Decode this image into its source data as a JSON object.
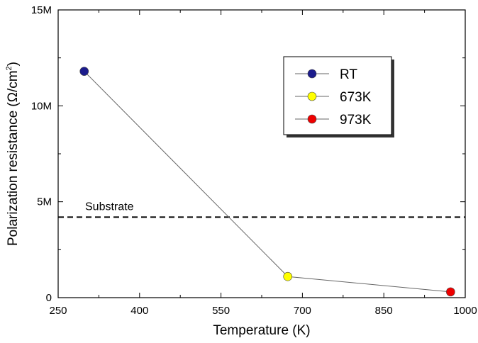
{
  "chart_data": {
    "type": "scatter",
    "xlabel": "Temperature (K)",
    "ylabel_main": "Polarization resistance (Ω/cm",
    "ylabel_sup": "2",
    "ylabel_close": ")",
    "xlim": [
      250,
      1000
    ],
    "ylim": [
      0,
      15000000
    ],
    "x_ticks": [
      {
        "value": 250,
        "label": "250"
      },
      {
        "value": 400,
        "label": "400"
      },
      {
        "value": 550,
        "label": "550"
      },
      {
        "value": 700,
        "label": "700"
      },
      {
        "value": 850,
        "label": "850"
      },
      {
        "value": 1000,
        "label": "1000"
      }
    ],
    "y_ticks": [
      {
        "value": 0,
        "label": "0"
      },
      {
        "value": 5000000,
        "label": "5M"
      },
      {
        "value": 10000000,
        "label": "10M"
      },
      {
        "value": 15000000,
        "label": "15M"
      }
    ],
    "series": [
      {
        "name": "RT",
        "x": 298,
        "y": 11800000,
        "color": "#1c1c8c"
      },
      {
        "name": "673K",
        "x": 673,
        "y": 1100000,
        "color": "#ffff00"
      },
      {
        "name": "973K",
        "x": 973,
        "y": 300000,
        "color": "#ee0000"
      }
    ],
    "connecting_line_color": "#666666",
    "reference_line": {
      "label": "Substrate",
      "y": 4200000,
      "style": "dashed"
    },
    "legend": {
      "placement": "top-right"
    },
    "grid": false
  }
}
